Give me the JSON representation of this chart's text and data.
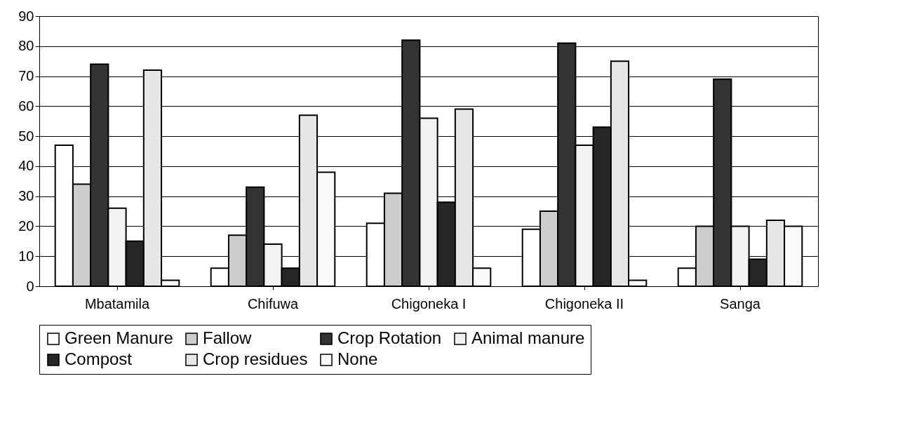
{
  "chart_data": {
    "type": "bar",
    "categories": [
      "Mbatamila",
      "Chifuwa",
      "Chigoneka I",
      "Chigoneka II",
      "Sanga"
    ],
    "series": [
      {
        "name": "Green Manure",
        "color": "#ffffff",
        "values": [
          47,
          6,
          21,
          19,
          6
        ]
      },
      {
        "name": "Fallow",
        "color": "#cccccc",
        "values": [
          34,
          17,
          31,
          25,
          20
        ]
      },
      {
        "name": "Crop Rotation",
        "color": "#333333",
        "values": [
          74,
          33,
          82,
          81,
          69
        ]
      },
      {
        "name": "Animal manure",
        "color": "#f2f2f2",
        "values": [
          26,
          14,
          56,
          47,
          20
        ]
      },
      {
        "name": "Compost",
        "color": "#262626",
        "values": [
          15,
          6,
          28,
          53,
          9
        ]
      },
      {
        "name": "Crop residues",
        "color": "#e6e6e6",
        "values": [
          72,
          57,
          59,
          75,
          22
        ]
      },
      {
        "name": "None",
        "color": "#fafafa",
        "values": [
          2,
          38,
          6,
          2,
          20
        ]
      }
    ],
    "ylim": [
      0,
      90
    ],
    "yticks": [
      0,
      10,
      20,
      30,
      40,
      50,
      60,
      70,
      80,
      90
    ],
    "grid": "y",
    "legend": "bottom"
  }
}
